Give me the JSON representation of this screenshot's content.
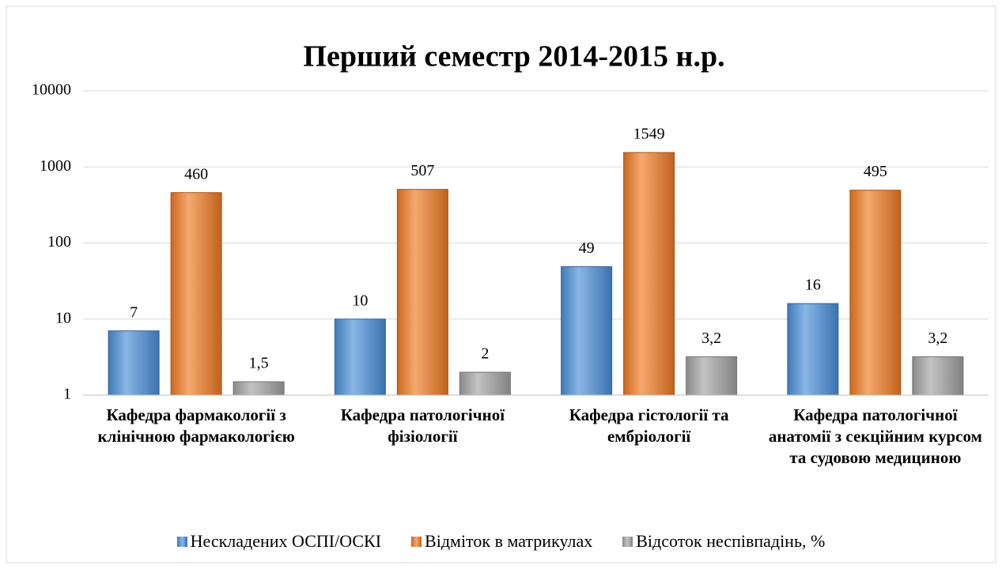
{
  "chart_data": {
    "type": "bar",
    "title": "Перший семестр 2014-2015 н.р.",
    "categories": [
      "Кафедра фармакології з клінічною фармакологією",
      "Кафедра патологічної фізіології",
      "Кафедра гістології та ембріології",
      "Кафедра патологічної анатомії з секційним курсом та судовою медициною"
    ],
    "series": [
      {
        "name": "Нескладених ОСПІ/ОСКІ",
        "color": "#4a8fd8",
        "values": [
          7,
          10,
          49,
          16
        ]
      },
      {
        "name": "Відміток в матрикулах",
        "color": "#f07a22",
        "values": [
          460,
          507,
          1549,
          495
        ]
      },
      {
        "name": "Відсоток неспівпадінь, %",
        "color": "#a3a3a3",
        "values": [
          1.5,
          2,
          3.2,
          3.2
        ],
        "value_labels": [
          "1,5",
          "2",
          "3,2",
          "3,2"
        ]
      }
    ],
    "ylim": [
      1,
      10000
    ],
    "yticks": [
      1,
      10,
      100,
      1000,
      10000
    ],
    "log": true,
    "grid": true,
    "legend": "bottom"
  }
}
